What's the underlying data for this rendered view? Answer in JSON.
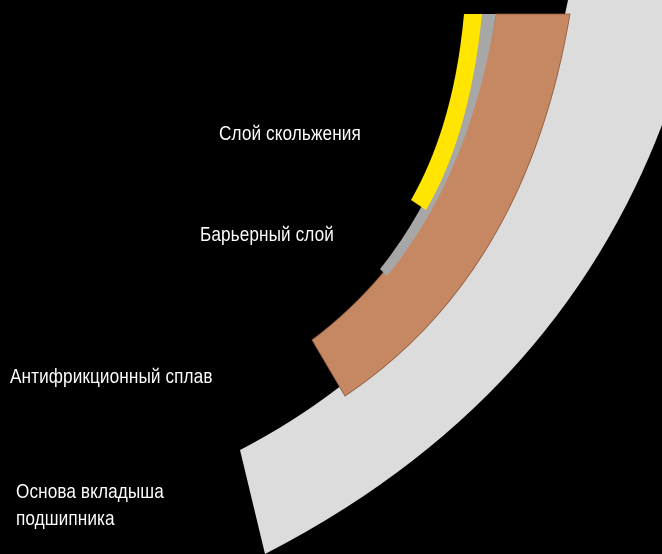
{
  "layers": {
    "sliding_layer": {
      "label": "Слой скольжения",
      "color": "#ffe500"
    },
    "barrier_layer": {
      "label": "Барьерный слой",
      "color": "#a7a7a7"
    },
    "antifriction_alloy": {
      "label": "Антифрикционный сплав",
      "color": "#c68763"
    },
    "bearing_shell_base": {
      "label_line1": "Основа вкладыша",
      "label_line2": "подшипника",
      "color": "#dcdcdc"
    }
  },
  "background": "#000000",
  "text_color": "#ffffff"
}
